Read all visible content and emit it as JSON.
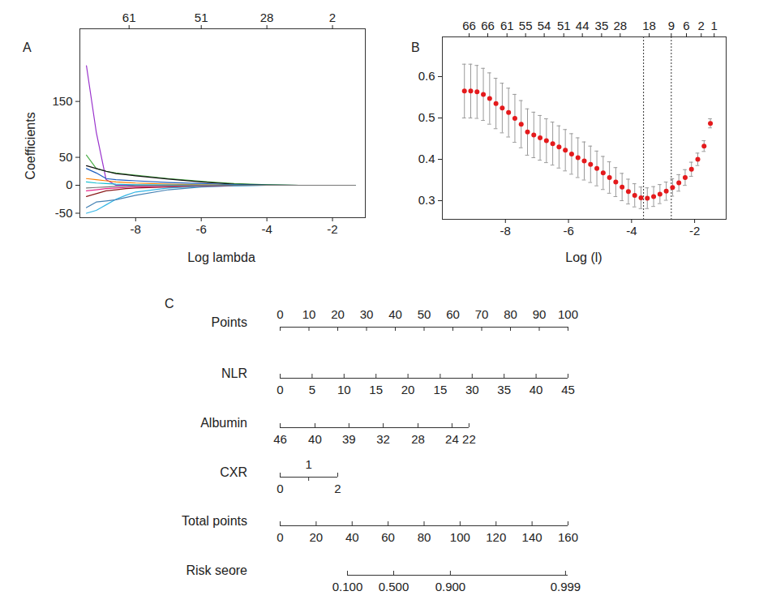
{
  "chart_data": [
    {
      "panel": "A",
      "type": "line",
      "xlabel": "Log lambda",
      "ylabel": "Coefficients",
      "xlim": [
        -9.7,
        -1.0
      ],
      "ylim": [
        -58,
        280
      ],
      "xticks": [
        -8,
        -6,
        -4,
        -2
      ],
      "yticks": [
        -50,
        0,
        50,
        150
      ],
      "top_ticks": [
        {
          "value": -8.2,
          "label": "61"
        },
        {
          "value": -6,
          "label": "51"
        },
        {
          "value": -4,
          "label": "28"
        },
        {
          "value": -2,
          "label": "2"
        }
      ],
      "x": [
        -9.5,
        -9.2,
        -8.9,
        -8.6,
        -8.3,
        -8,
        -7,
        -6,
        -5,
        -4,
        -3,
        -2,
        -1.3
      ],
      "series": [
        {
          "color": "#9932cc",
          "values": [
            214,
            95,
            10,
            0,
            0,
            0,
            0,
            0,
            0,
            0,
            0,
            0,
            0
          ]
        },
        {
          "color": "#4daf4a",
          "values": [
            54,
            30,
            25,
            22,
            20,
            18,
            12,
            7,
            3,
            1,
            0,
            0,
            0
          ]
        },
        {
          "color": "#111111",
          "values": [
            35,
            30,
            25,
            21,
            19,
            17,
            11,
            6,
            2,
            0.5,
            0,
            0,
            0
          ]
        },
        {
          "color": "#1f5fbf",
          "values": [
            30,
            22,
            12,
            10,
            9,
            8,
            5,
            3,
            1,
            0,
            0,
            0,
            0
          ]
        },
        {
          "color": "#33b5e5",
          "values": [
            -50,
            -45,
            -35,
            -25,
            -18,
            -12,
            -5,
            -2,
            -1,
            0,
            0,
            0,
            0
          ]
        },
        {
          "color": "#4682b4",
          "values": [
            -40,
            -30,
            -28,
            -26,
            -22,
            -18,
            -8,
            -3,
            -1,
            0,
            0,
            0,
            0
          ]
        },
        {
          "color": "#8b1a1a",
          "values": [
            -20,
            -15,
            -10,
            -8,
            -6,
            -5,
            -3,
            -1,
            0,
            0,
            0,
            0,
            0
          ]
        },
        {
          "color": "#e7298a",
          "values": [
            -10,
            -8,
            -6,
            -5,
            -4,
            -3,
            -2,
            -1,
            0,
            0,
            0,
            0,
            0
          ]
        },
        {
          "color": "#ff7f00",
          "values": [
            12,
            10,
            8,
            6,
            5,
            4,
            2,
            1,
            0,
            0,
            0,
            0,
            0
          ]
        },
        {
          "color": "#17becf",
          "values": [
            6,
            4,
            3,
            2,
            1.5,
            1,
            0.5,
            0.3,
            0.2,
            0.1,
            0.05,
            0.02,
            0
          ]
        },
        {
          "color": "#777777",
          "values": [
            -5,
            -4,
            -3,
            -2,
            -2,
            -1,
            -1,
            -0.5,
            0,
            0,
            0,
            0,
            0
          ]
        }
      ]
    },
    {
      "panel": "B",
      "type": "scatter",
      "xlabel": "Log (l)",
      "xlim": [
        -10.0,
        -1.0
      ],
      "ylim": [
        0.255,
        0.696
      ],
      "xticks": [
        -8,
        -6,
        -4,
        -2
      ],
      "yticks": [
        0.3,
        0.4,
        0.5,
        0.6
      ],
      "top_ticks": [
        {
          "value": -9.15,
          "label": "66"
        },
        {
          "value": -8.56,
          "label": "66"
        },
        {
          "value": -7.95,
          "label": "61"
        },
        {
          "value": -7.36,
          "label": "55"
        },
        {
          "value": -6.77,
          "label": "54"
        },
        {
          "value": -6.15,
          "label": "51"
        },
        {
          "value": -5.56,
          "label": "44"
        },
        {
          "value": -4.95,
          "label": "35"
        },
        {
          "value": -4.36,
          "label": "28"
        },
        {
          "value": -3.44,
          "label": "18"
        },
        {
          "value": -2.74,
          "label": "9"
        },
        {
          "value": -2.26,
          "label": "6"
        },
        {
          "value": -1.79,
          "label": "2"
        },
        {
          "value": -1.38,
          "label": "1"
        }
      ],
      "vlines": [
        -3.62,
        -2.74
      ],
      "color": "#e41a1c",
      "x": [
        -9.3,
        -9.1,
        -8.9,
        -8.7,
        -8.5,
        -8.3,
        -8.1,
        -7.9,
        -7.7,
        -7.5,
        -7.3,
        -7.1,
        -6.9,
        -6.7,
        -6.5,
        -6.3,
        -6.1,
        -5.9,
        -5.7,
        -5.5,
        -5.3,
        -5.1,
        -4.9,
        -4.7,
        -4.5,
        -4.3,
        -4.1,
        -3.9,
        -3.7,
        -3.5,
        -3.3,
        -3.1,
        -2.9,
        -2.7,
        -2.5,
        -2.3,
        -2.1,
        -1.9,
        -1.7,
        -1.5
      ],
      "values": [
        0.565,
        0.565,
        0.563,
        0.557,
        0.547,
        0.535,
        0.524,
        0.513,
        0.499,
        0.485,
        0.466,
        0.459,
        0.452,
        0.445,
        0.438,
        0.43,
        0.422,
        0.413,
        0.404,
        0.396,
        0.388,
        0.378,
        0.367,
        0.356,
        0.345,
        0.333,
        0.322,
        0.313,
        0.307,
        0.306,
        0.31,
        0.316,
        0.323,
        0.332,
        0.343,
        0.356,
        0.376,
        0.4,
        0.432,
        0.487
      ],
      "errors": [
        0.065,
        0.065,
        0.064,
        0.063,
        0.062,
        0.061,
        0.06,
        0.059,
        0.058,
        0.057,
        0.056,
        0.055,
        0.054,
        0.053,
        0.052,
        0.051,
        0.05,
        0.049,
        0.048,
        0.046,
        0.044,
        0.042,
        0.04,
        0.038,
        0.035,
        0.033,
        0.03,
        0.028,
        0.026,
        0.025,
        0.024,
        0.023,
        0.022,
        0.021,
        0.02,
        0.019,
        0.017,
        0.015,
        0.013,
        0.011
      ]
    },
    {
      "panel": "C",
      "type": "nomogram",
      "rows": [
        {
          "label": "Points",
          "xlim": [
            0,
            100
          ],
          "line": [
            0,
            100
          ],
          "ticks": [
            0,
            10,
            20,
            30,
            40,
            50,
            60,
            70,
            80,
            90,
            100
          ]
        },
        {
          "label": "NLR",
          "xlim": [
            0,
            100
          ],
          "line": [
            0,
            100
          ],
          "ticks": [
            {
              "value": 0,
              "label": "0"
            },
            {
              "value": 11.1,
              "label": "5"
            },
            {
              "value": 22.2,
              "label": "10"
            },
            {
              "value": 33.3,
              "label": "15"
            },
            {
              "value": 44.4,
              "label": "20"
            },
            {
              "value": 55.6,
              "label": "15"
            },
            {
              "value": 66.7,
              "label": "30"
            },
            {
              "value": 77.8,
              "label": "35"
            },
            {
              "value": 88.9,
              "label": "40"
            },
            {
              "value": 100,
              "label": "45"
            }
          ]
        },
        {
          "label": "Albumin",
          "xlim": [
            0,
            100
          ],
          "line": [
            0,
            65.6
          ],
          "ticks": [
            {
              "value": 0,
              "label": "46"
            },
            {
              "value": 12.1,
              "label": "40"
            },
            {
              "value": 23.9,
              "label": "39"
            },
            {
              "value": 35.8,
              "label": "32"
            },
            {
              "value": 47.9,
              "label": "28"
            },
            {
              "value": 59.7,
              "label": "24"
            },
            {
              "value": 65.6,
              "label": "22"
            }
          ]
        },
        {
          "label": "CXR",
          "xlim": [
            0,
            100
          ],
          "line": [
            0,
            20
          ],
          "ticks": [
            {
              "value": 0,
              "label": "0"
            },
            {
              "value": 9.9,
              "label": "1"
            },
            {
              "value": 20,
              "label": "2"
            }
          ]
        },
        {
          "label": "Total points",
          "xlim": [
            0,
            160
          ],
          "line": [
            0,
            160
          ],
          "ticks": [
            0,
            20,
            40,
            60,
            80,
            100,
            120,
            140,
            160
          ]
        },
        {
          "label": "Risk seore",
          "xlim": [
            0,
            160
          ],
          "line": [
            37.4,
            160
          ],
          "ticks": [
            {
              "value": 37.4,
              "label": "0.100"
            },
            {
              "value": 63.1,
              "label": "0.500"
            },
            {
              "value": 94.6,
              "label": "0.900"
            },
            {
              "value": 158.6,
              "label": "0.999"
            }
          ]
        }
      ]
    }
  ]
}
